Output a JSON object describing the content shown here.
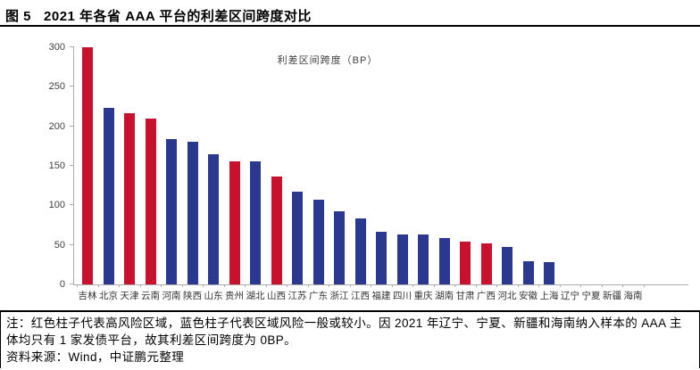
{
  "header": {
    "figure_label": "图 5",
    "title": "2021 年各省 AAA 平台的利差区间跨度对比"
  },
  "chart_data": {
    "type": "bar",
    "title": "利差区间跨度（BP）",
    "categories": [
      "吉林",
      "北京",
      "天津",
      "云南",
      "河南",
      "陕西",
      "山东",
      "贵州",
      "湖北",
      "山西",
      "江苏",
      "广东",
      "浙江",
      "江西",
      "福建",
      "四川",
      "重庆",
      "湖南",
      "甘肃",
      "广西",
      "河北",
      "安徽",
      "上海",
      "辽宁",
      "宁夏",
      "新疆",
      "海南"
    ],
    "values": [
      300,
      223,
      217,
      210,
      184,
      180,
      165,
      156,
      156,
      136,
      117,
      107,
      93,
      84,
      67,
      63,
      63,
      59,
      54,
      52,
      47,
      29,
      28,
      0,
      0,
      0,
      0
    ],
    "bar_colors": [
      "red",
      "blue",
      "red",
      "red",
      "blue",
      "blue",
      "blue",
      "red",
      "blue",
      "red",
      "blue",
      "blue",
      "blue",
      "blue",
      "blue",
      "blue",
      "blue",
      "blue",
      "red",
      "red",
      "blue",
      "blue",
      "blue",
      "blue",
      "blue",
      "blue",
      "blue"
    ],
    "colors": {
      "red": "#C8122D",
      "blue": "#2B3890"
    },
    "y_ticks": [
      0,
      50,
      100,
      150,
      200,
      250,
      300
    ],
    "ylim": [
      0,
      300
    ],
    "xlabel": "",
    "ylabel": "",
    "grid": "off",
    "legend_position": "top-center"
  },
  "footer": {
    "note": "注：红色柱子代表高风险区域，蓝色柱子代表区域风险一般或较小。因 2021 年辽宁、宁夏、新疆和海南纳入样本的 AAA 主体均只有 1 家发债平台，故其利差区间跨度为 0BP。",
    "source": "资料来源：Wind，中证鹏元整理"
  }
}
